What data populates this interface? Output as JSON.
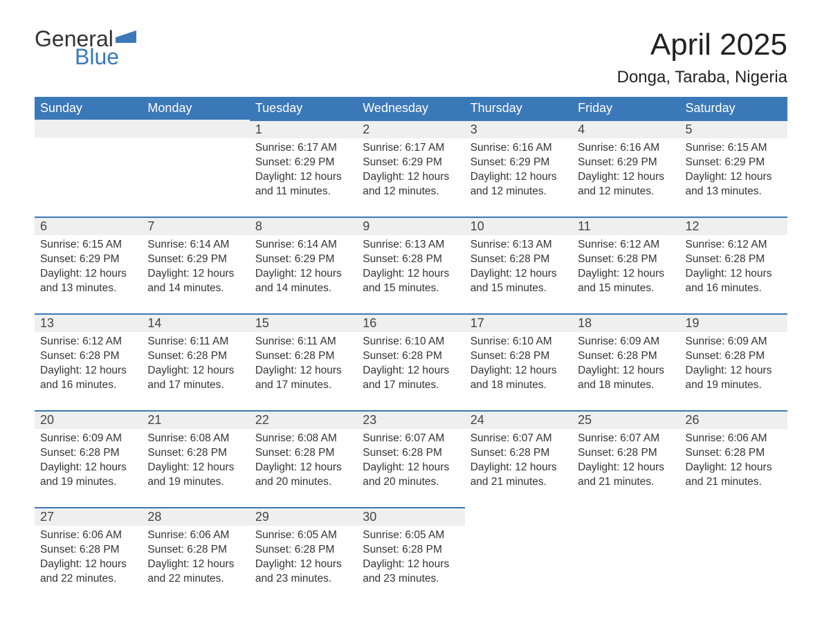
{
  "logo": {
    "word1": "General",
    "word2": "Blue",
    "flag_color": "#3b78b8"
  },
  "title": "April 2025",
  "location": "Donga, Taraba, Nigeria",
  "colors": {
    "header_bg": "#3b78b8",
    "header_text": "#ffffff",
    "daynum_bg": "#efefef",
    "daynum_border": "#3b78b8",
    "body_text": "#333333"
  },
  "weekdays": [
    "Sunday",
    "Monday",
    "Tuesday",
    "Wednesday",
    "Thursday",
    "Friday",
    "Saturday"
  ],
  "weeks": [
    [
      null,
      null,
      {
        "n": "1",
        "sr": "6:17 AM",
        "ss": "6:29 PM",
        "dl": "12 hours and 11 minutes."
      },
      {
        "n": "2",
        "sr": "6:17 AM",
        "ss": "6:29 PM",
        "dl": "12 hours and 12 minutes."
      },
      {
        "n": "3",
        "sr": "6:16 AM",
        "ss": "6:29 PM",
        "dl": "12 hours and 12 minutes."
      },
      {
        "n": "4",
        "sr": "6:16 AM",
        "ss": "6:29 PM",
        "dl": "12 hours and 12 minutes."
      },
      {
        "n": "5",
        "sr": "6:15 AM",
        "ss": "6:29 PM",
        "dl": "12 hours and 13 minutes."
      }
    ],
    [
      {
        "n": "6",
        "sr": "6:15 AM",
        "ss": "6:29 PM",
        "dl": "12 hours and 13 minutes."
      },
      {
        "n": "7",
        "sr": "6:14 AM",
        "ss": "6:29 PM",
        "dl": "12 hours and 14 minutes."
      },
      {
        "n": "8",
        "sr": "6:14 AM",
        "ss": "6:29 PM",
        "dl": "12 hours and 14 minutes."
      },
      {
        "n": "9",
        "sr": "6:13 AM",
        "ss": "6:28 PM",
        "dl": "12 hours and 15 minutes."
      },
      {
        "n": "10",
        "sr": "6:13 AM",
        "ss": "6:28 PM",
        "dl": "12 hours and 15 minutes."
      },
      {
        "n": "11",
        "sr": "6:12 AM",
        "ss": "6:28 PM",
        "dl": "12 hours and 15 minutes."
      },
      {
        "n": "12",
        "sr": "6:12 AM",
        "ss": "6:28 PM",
        "dl": "12 hours and 16 minutes."
      }
    ],
    [
      {
        "n": "13",
        "sr": "6:12 AM",
        "ss": "6:28 PM",
        "dl": "12 hours and 16 minutes."
      },
      {
        "n": "14",
        "sr": "6:11 AM",
        "ss": "6:28 PM",
        "dl": "12 hours and 17 minutes."
      },
      {
        "n": "15",
        "sr": "6:11 AM",
        "ss": "6:28 PM",
        "dl": "12 hours and 17 minutes."
      },
      {
        "n": "16",
        "sr": "6:10 AM",
        "ss": "6:28 PM",
        "dl": "12 hours and 17 minutes."
      },
      {
        "n": "17",
        "sr": "6:10 AM",
        "ss": "6:28 PM",
        "dl": "12 hours and 18 minutes."
      },
      {
        "n": "18",
        "sr": "6:09 AM",
        "ss": "6:28 PM",
        "dl": "12 hours and 18 minutes."
      },
      {
        "n": "19",
        "sr": "6:09 AM",
        "ss": "6:28 PM",
        "dl": "12 hours and 19 minutes."
      }
    ],
    [
      {
        "n": "20",
        "sr": "6:09 AM",
        "ss": "6:28 PM",
        "dl": "12 hours and 19 minutes."
      },
      {
        "n": "21",
        "sr": "6:08 AM",
        "ss": "6:28 PM",
        "dl": "12 hours and 19 minutes."
      },
      {
        "n": "22",
        "sr": "6:08 AM",
        "ss": "6:28 PM",
        "dl": "12 hours and 20 minutes."
      },
      {
        "n": "23",
        "sr": "6:07 AM",
        "ss": "6:28 PM",
        "dl": "12 hours and 20 minutes."
      },
      {
        "n": "24",
        "sr": "6:07 AM",
        "ss": "6:28 PM",
        "dl": "12 hours and 21 minutes."
      },
      {
        "n": "25",
        "sr": "6:07 AM",
        "ss": "6:28 PM",
        "dl": "12 hours and 21 minutes."
      },
      {
        "n": "26",
        "sr": "6:06 AM",
        "ss": "6:28 PM",
        "dl": "12 hours and 21 minutes."
      }
    ],
    [
      {
        "n": "27",
        "sr": "6:06 AM",
        "ss": "6:28 PM",
        "dl": "12 hours and 22 minutes."
      },
      {
        "n": "28",
        "sr": "6:06 AM",
        "ss": "6:28 PM",
        "dl": "12 hours and 22 minutes."
      },
      {
        "n": "29",
        "sr": "6:05 AM",
        "ss": "6:28 PM",
        "dl": "12 hours and 23 minutes."
      },
      {
        "n": "30",
        "sr": "6:05 AM",
        "ss": "6:28 PM",
        "dl": "12 hours and 23 minutes."
      },
      null,
      null,
      null
    ]
  ],
  "labels": {
    "sunrise": "Sunrise: ",
    "sunset": "Sunset: ",
    "daylight": "Daylight: "
  }
}
